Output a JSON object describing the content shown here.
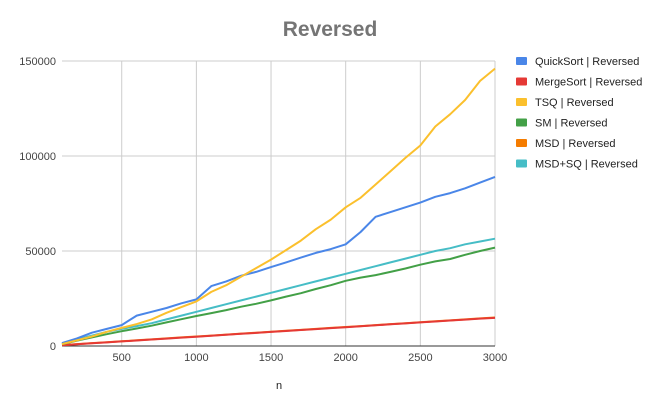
{
  "chart_data": {
    "type": "line",
    "title": "Reversed",
    "xlabel": "n",
    "ylabel": "",
    "xlim": [
      100,
      3000
    ],
    "ylim": [
      0,
      150000
    ],
    "x_ticks": [
      500,
      1000,
      1500,
      2000,
      2500,
      3000
    ],
    "y_ticks": [
      0,
      50000,
      100000,
      150000
    ],
    "grid": true,
    "legend_position": "right",
    "x": [
      100,
      200,
      300,
      400,
      500,
      600,
      700,
      800,
      900,
      1000,
      1100,
      1200,
      1300,
      1400,
      1500,
      1600,
      1700,
      1800,
      1900,
      2000,
      2100,
      2200,
      2300,
      2400,
      2500,
      2600,
      2700,
      2800,
      2900,
      3000
    ],
    "series": [
      {
        "name": "QuickSort | Reversed",
        "color": "#4a86e8",
        "values": [
          1500,
          4000,
          7000,
          9000,
          11000,
          16000,
          18000,
          20000,
          22500,
          24500,
          31500,
          34000,
          37000,
          39000,
          41500,
          44000,
          46500,
          49000,
          51000,
          53500,
          60000,
          68000,
          70500,
          73000,
          75500,
          78500,
          80500,
          83000,
          86000,
          89000
        ]
      },
      {
        "name": "MergeSort | Reversed",
        "color": "#e53935",
        "values": [
          400,
          900,
          1400,
          1900,
          2400,
          2900,
          3400,
          3900,
          4400,
          4900,
          5400,
          5900,
          6400,
          6900,
          7400,
          7900,
          8400,
          8900,
          9400,
          9900,
          10400,
          10900,
          11400,
          11900,
          12400,
          12900,
          13400,
          13900,
          14400,
          14800
        ]
      },
      {
        "name": "TSQ | Reversed",
        "color": "#fbc02d",
        "values": [
          1000,
          3000,
          5000,
          7500,
          9500,
          11500,
          14000,
          17500,
          20500,
          23500,
          28500,
          32000,
          36500,
          41000,
          45500,
          50500,
          55500,
          61500,
          66500,
          73000,
          78000,
          85000,
          92000,
          99000,
          105500,
          115500,
          122000,
          129500,
          139500,
          146000
        ]
      },
      {
        "name": "SM | Reversed",
        "color": "#43a047",
        "values": [
          900,
          2800,
          4500,
          6200,
          7800,
          9200,
          10700,
          12400,
          14100,
          15800,
          17300,
          18900,
          20700,
          22200,
          24000,
          26000,
          27800,
          30000,
          32000,
          34300,
          36000,
          37300,
          39000,
          40800,
          42800,
          44500,
          45800,
          48000,
          50000,
          51800
        ]
      },
      {
        "name": "MSD | Reversed",
        "color": "#f57c00",
        "values": [
          500,
          1000,
          1500,
          2000,
          2500,
          3000,
          3500,
          4000,
          4500,
          5000,
          5500,
          6000,
          6500,
          7000,
          7500,
          8000,
          8500,
          9000,
          9500,
          10000,
          10500,
          11000,
          11500,
          12000,
          12500,
          13000,
          13500,
          14000,
          14500,
          15000
        ]
      },
      {
        "name": "MSD+SQ | Reversed",
        "color": "#46bdc6",
        "values": [
          1200,
          3500,
          5500,
          7500,
          9000,
          10500,
          12000,
          14000,
          16000,
          18000,
          20000,
          22000,
          24000,
          26000,
          28000,
          30000,
          32000,
          34000,
          36000,
          38000,
          40000,
          42000,
          44000,
          46000,
          48000,
          50000,
          51500,
          53500,
          55000,
          56500
        ]
      }
    ]
  }
}
